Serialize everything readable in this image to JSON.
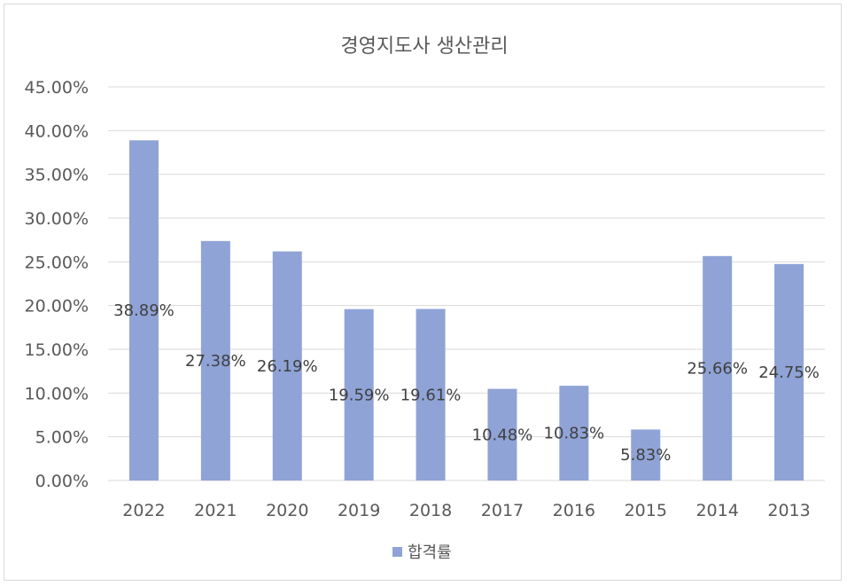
{
  "chart_data": {
    "type": "bar",
    "title": "경영지도사 생산관리",
    "categories": [
      "2022",
      "2021",
      "2020",
      "2019",
      "2018",
      "2017",
      "2016",
      "2015",
      "2014",
      "2013"
    ],
    "series": [
      {
        "name": "합격률",
        "values": [
          38.89,
          27.38,
          26.19,
          19.59,
          19.61,
          10.48,
          10.83,
          5.83,
          25.66,
          24.75
        ],
        "labels": [
          "38.89%",
          "27.38%",
          "26.19%",
          "19.59%",
          "19.61%",
          "10.48%",
          "10.83%",
          "5.83%",
          "25.66%",
          "24.75%"
        ],
        "color": "#8fa3d6"
      }
    ],
    "yticks": [
      "0.00%",
      "5.00%",
      "10.00%",
      "15.00%",
      "20.00%",
      "25.00%",
      "30.00%",
      "35.00%",
      "40.00%",
      "45.00%"
    ],
    "ylim": [
      0,
      45
    ],
    "grid": true,
    "legend_position": "bottom"
  },
  "colors": {
    "grid": "#d9d9d9",
    "axis": "#d9d9d9"
  }
}
